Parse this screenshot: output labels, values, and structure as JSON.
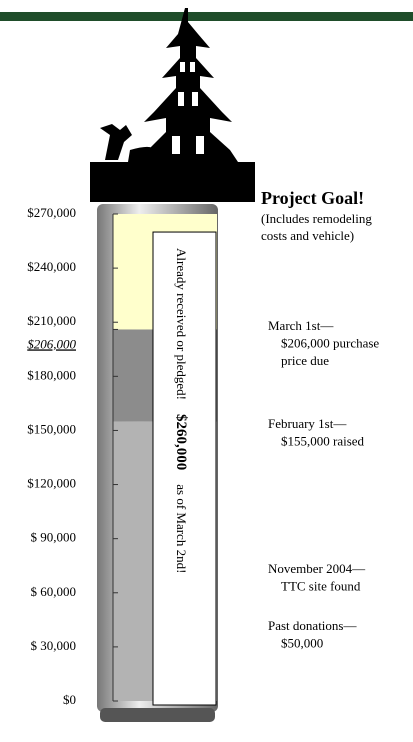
{
  "chart_data": {
    "type": "thermometer",
    "ylim": [
      0,
      270000
    ],
    "yticks": [
      {
        "value": 0,
        "label": "$0"
      },
      {
        "value": 30000,
        "label": "$ 30,000"
      },
      {
        "value": 60000,
        "label": "$ 60,000"
      },
      {
        "value": 90000,
        "label": "$ 90,000"
      },
      {
        "value": 120000,
        "label": "$120,000"
      },
      {
        "value": 150000,
        "label": "$150,000"
      },
      {
        "value": 180000,
        "label": "$180,000"
      },
      {
        "value": 210000,
        "label": "$210,000"
      },
      {
        "value": 240000,
        "label": "$240,000"
      },
      {
        "value": 270000,
        "label": "$270,000"
      }
    ],
    "marker": {
      "value": 206000,
      "label": "$206,000"
    },
    "segments": [
      {
        "value": 155000,
        "color": "#b3b3b3"
      },
      {
        "value": 51000,
        "color": "#8c8c8c"
      },
      {
        "value": 64000,
        "color": "#ffffcc"
      }
    ],
    "pledged": {
      "value": 260000,
      "label": "$260,000"
    },
    "pledged_text": "Already received or pledged!",
    "pledged_date": "as of March 2nd!",
    "goal_title": "Project Goal!",
    "goal_note": [
      "(Includes remodeling",
      "costs and vehicle)"
    ],
    "annotations": [
      [
        "March 1st—",
        "$206,000 purchase",
        "price due"
      ],
      [
        "February 1st—",
        "$155,000 raised"
      ],
      [
        "November 2004—",
        "TTC site found"
      ],
      [
        "Past donations—",
        "$50,000"
      ]
    ]
  }
}
